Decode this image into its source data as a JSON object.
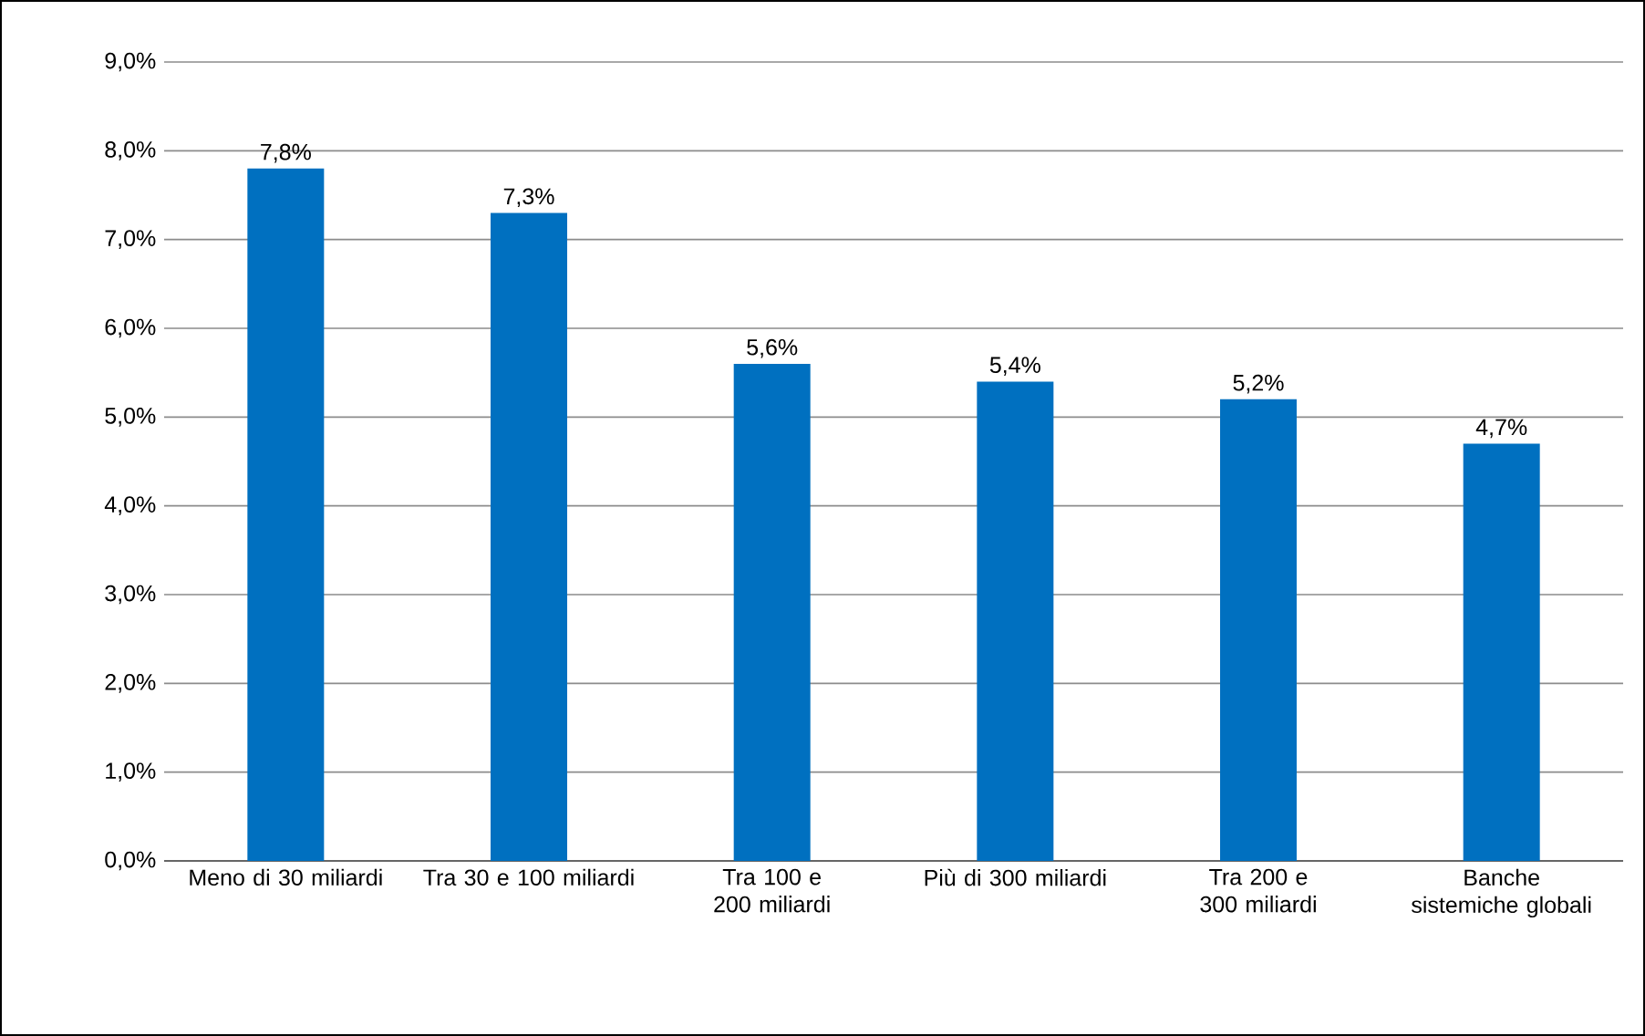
{
  "chart_data": {
    "type": "bar",
    "categories": [
      "Meno di 30 miliardi",
      "Tra 30 e 100 miliardi",
      "Tra 100 e 200 miliardi",
      "Più di 300 miliardi",
      "Tra 200 e 300 miliardi",
      "Banche sistemiche globali"
    ],
    "values": [
      7.8,
      7.3,
      5.6,
      5.4,
      5.2,
      4.7
    ],
    "value_labels": [
      "7,8%",
      "7,3%",
      "5,6%",
      "5,4%",
      "5,2%",
      "4,7%"
    ],
    "color": "#0070c0",
    "ylim": [
      0,
      9
    ],
    "yticks": [
      {
        "value": 0,
        "label": "0,0%"
      },
      {
        "value": 1,
        "label": "1,0%"
      },
      {
        "value": 2,
        "label": "2,0%"
      },
      {
        "value": 3,
        "label": "3,0%"
      },
      {
        "value": 4,
        "label": "4,0%"
      },
      {
        "value": 5,
        "label": "5,0%"
      },
      {
        "value": 6,
        "label": "6,0%"
      },
      {
        "value": 7,
        "label": "7,0%"
      },
      {
        "value": 8,
        "label": "8,0%"
      },
      {
        "value": 9,
        "label": "9,0%"
      }
    ],
    "grid": "y"
  }
}
